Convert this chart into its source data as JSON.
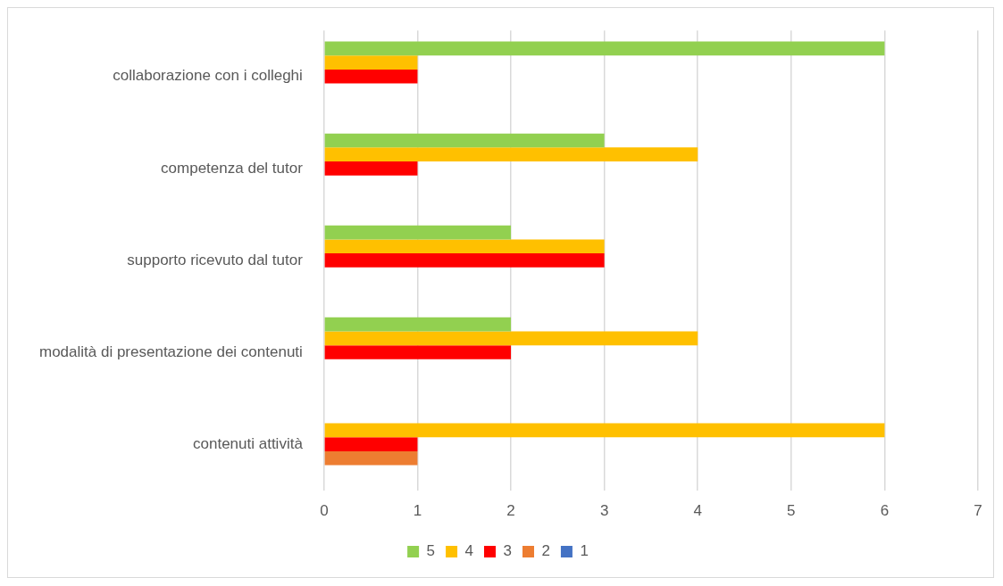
{
  "chart_data": {
    "type": "bar",
    "orientation": "horizontal",
    "categories": [
      "collaborazione con i colleghi",
      "competenza del tutor",
      "supporto ricevuto dal tutor",
      "modalità di presentazione dei contenuti",
      "contenuti attività"
    ],
    "series": [
      {
        "name": "5",
        "color": "#92d050",
        "values": [
          6,
          3,
          2,
          2,
          0
        ]
      },
      {
        "name": "4",
        "color": "#ffc000",
        "values": [
          1,
          4,
          3,
          4,
          6
        ]
      },
      {
        "name": "3",
        "color": "#ff0000",
        "values": [
          1,
          1,
          3,
          2,
          1
        ]
      },
      {
        "name": "2",
        "color": "#ed7d31",
        "values": [
          0,
          0,
          0,
          0,
          1
        ]
      },
      {
        "name": "1",
        "color": "#4472c4",
        "values": [
          0,
          0,
          0,
          0,
          0
        ]
      }
    ],
    "xlim": [
      0,
      7
    ],
    "xticks": [
      0,
      1,
      2,
      3,
      4,
      5,
      6,
      7
    ],
    "grid": "x",
    "legend": "bottom"
  }
}
